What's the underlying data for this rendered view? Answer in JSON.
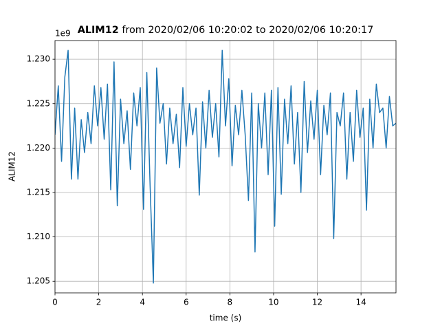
{
  "chart_data": {
    "type": "line",
    "title_bold": "ALIM12",
    "title_rest": "from 2020/02/06 10:20:02 to 2020/02/06 10:20:17",
    "x_label": "time (s)",
    "y_label": "ALIM12",
    "y_offset_label": "1e9",
    "color": "#1f77b4",
    "grid": true,
    "xlim": [
      0,
      15.6
    ],
    "ylim": [
      1.2037,
      1.2321
    ],
    "xticks": [
      0,
      2,
      4,
      6,
      8,
      10,
      12,
      14
    ],
    "yticks": [
      1.205,
      {
        "value": 1.21,
        "label": "1.210"
      },
      1.215,
      {
        "value": 1.22,
        "label": "1.220"
      },
      1.225,
      {
        "value": 1.23,
        "label": "1.230"
      }
    ],
    "x": [
      0.0,
      0.15,
      0.3,
      0.45,
      0.6,
      0.75,
      0.9,
      1.05,
      1.2,
      1.35,
      1.5,
      1.65,
      1.8,
      1.95,
      2.1,
      2.25,
      2.4,
      2.55,
      2.7,
      2.85,
      3.0,
      3.15,
      3.3,
      3.45,
      3.6,
      3.75,
      3.9,
      4.05,
      4.2,
      4.35,
      4.5,
      4.65,
      4.8,
      4.95,
      5.1,
      5.25,
      5.4,
      5.55,
      5.7,
      5.85,
      6.0,
      6.15,
      6.3,
      6.45,
      6.6,
      6.75,
      6.9,
      7.05,
      7.2,
      7.35,
      7.5,
      7.65,
      7.8,
      7.95,
      8.1,
      8.25,
      8.4,
      8.55,
      8.7,
      8.85,
      9.0,
      9.15,
      9.3,
      9.45,
      9.6,
      9.75,
      9.9,
      10.05,
      10.2,
      10.35,
      10.5,
      10.65,
      10.8,
      10.95,
      11.1,
      11.25,
      11.4,
      11.55,
      11.7,
      11.85,
      12.0,
      12.15,
      12.3,
      12.45,
      12.6,
      12.75,
      12.9,
      13.05,
      13.2,
      13.35,
      13.5,
      13.65,
      13.8,
      13.95,
      14.1,
      14.25,
      14.4,
      14.55,
      14.7,
      14.85,
      15.0,
      15.15,
      15.3,
      15.45,
      15.6
    ],
    "values": [
      1.2215,
      1.227,
      1.2185,
      1.228,
      1.231,
      1.2165,
      1.2245,
      1.2165,
      1.2232,
      1.2195,
      1.224,
      1.2205,
      1.227,
      1.2225,
      1.2268,
      1.221,
      1.2272,
      1.2153,
      1.2297,
      1.2135,
      1.2255,
      1.2205,
      1.2242,
      1.2176,
      1.2262,
      1.2225,
      1.2268,
      1.2131,
      1.2285,
      1.2158,
      1.2048,
      1.229,
      1.2228,
      1.225,
      1.2182,
      1.2245,
      1.2205,
      1.2238,
      1.2178,
      1.2268,
      1.2202,
      1.225,
      1.2215,
      1.2245,
      1.2147,
      1.2252,
      1.22,
      1.2265,
      1.2212,
      1.225,
      1.219,
      1.231,
      1.2225,
      1.2278,
      1.218,
      1.2248,
      1.2215,
      1.2265,
      1.2215,
      1.2141,
      1.2262,
      1.2083,
      1.225,
      1.22,
      1.2262,
      1.217,
      1.2265,
      1.2112,
      1.2268,
      1.2148,
      1.2255,
      1.2205,
      1.227,
      1.2182,
      1.224,
      1.215,
      1.2275,
      1.2195,
      1.2253,
      1.221,
      1.2265,
      1.217,
      1.2248,
      1.2215,
      1.2262,
      1.2098,
      1.224,
      1.2225,
      1.2262,
      1.2165,
      1.224,
      1.2185,
      1.2265,
      1.2212,
      1.2245,
      1.213,
      1.2255,
      1.22,
      1.2272,
      1.224,
      1.2245,
      1.22,
      1.2258,
      1.2225,
      1.2228
    ]
  }
}
